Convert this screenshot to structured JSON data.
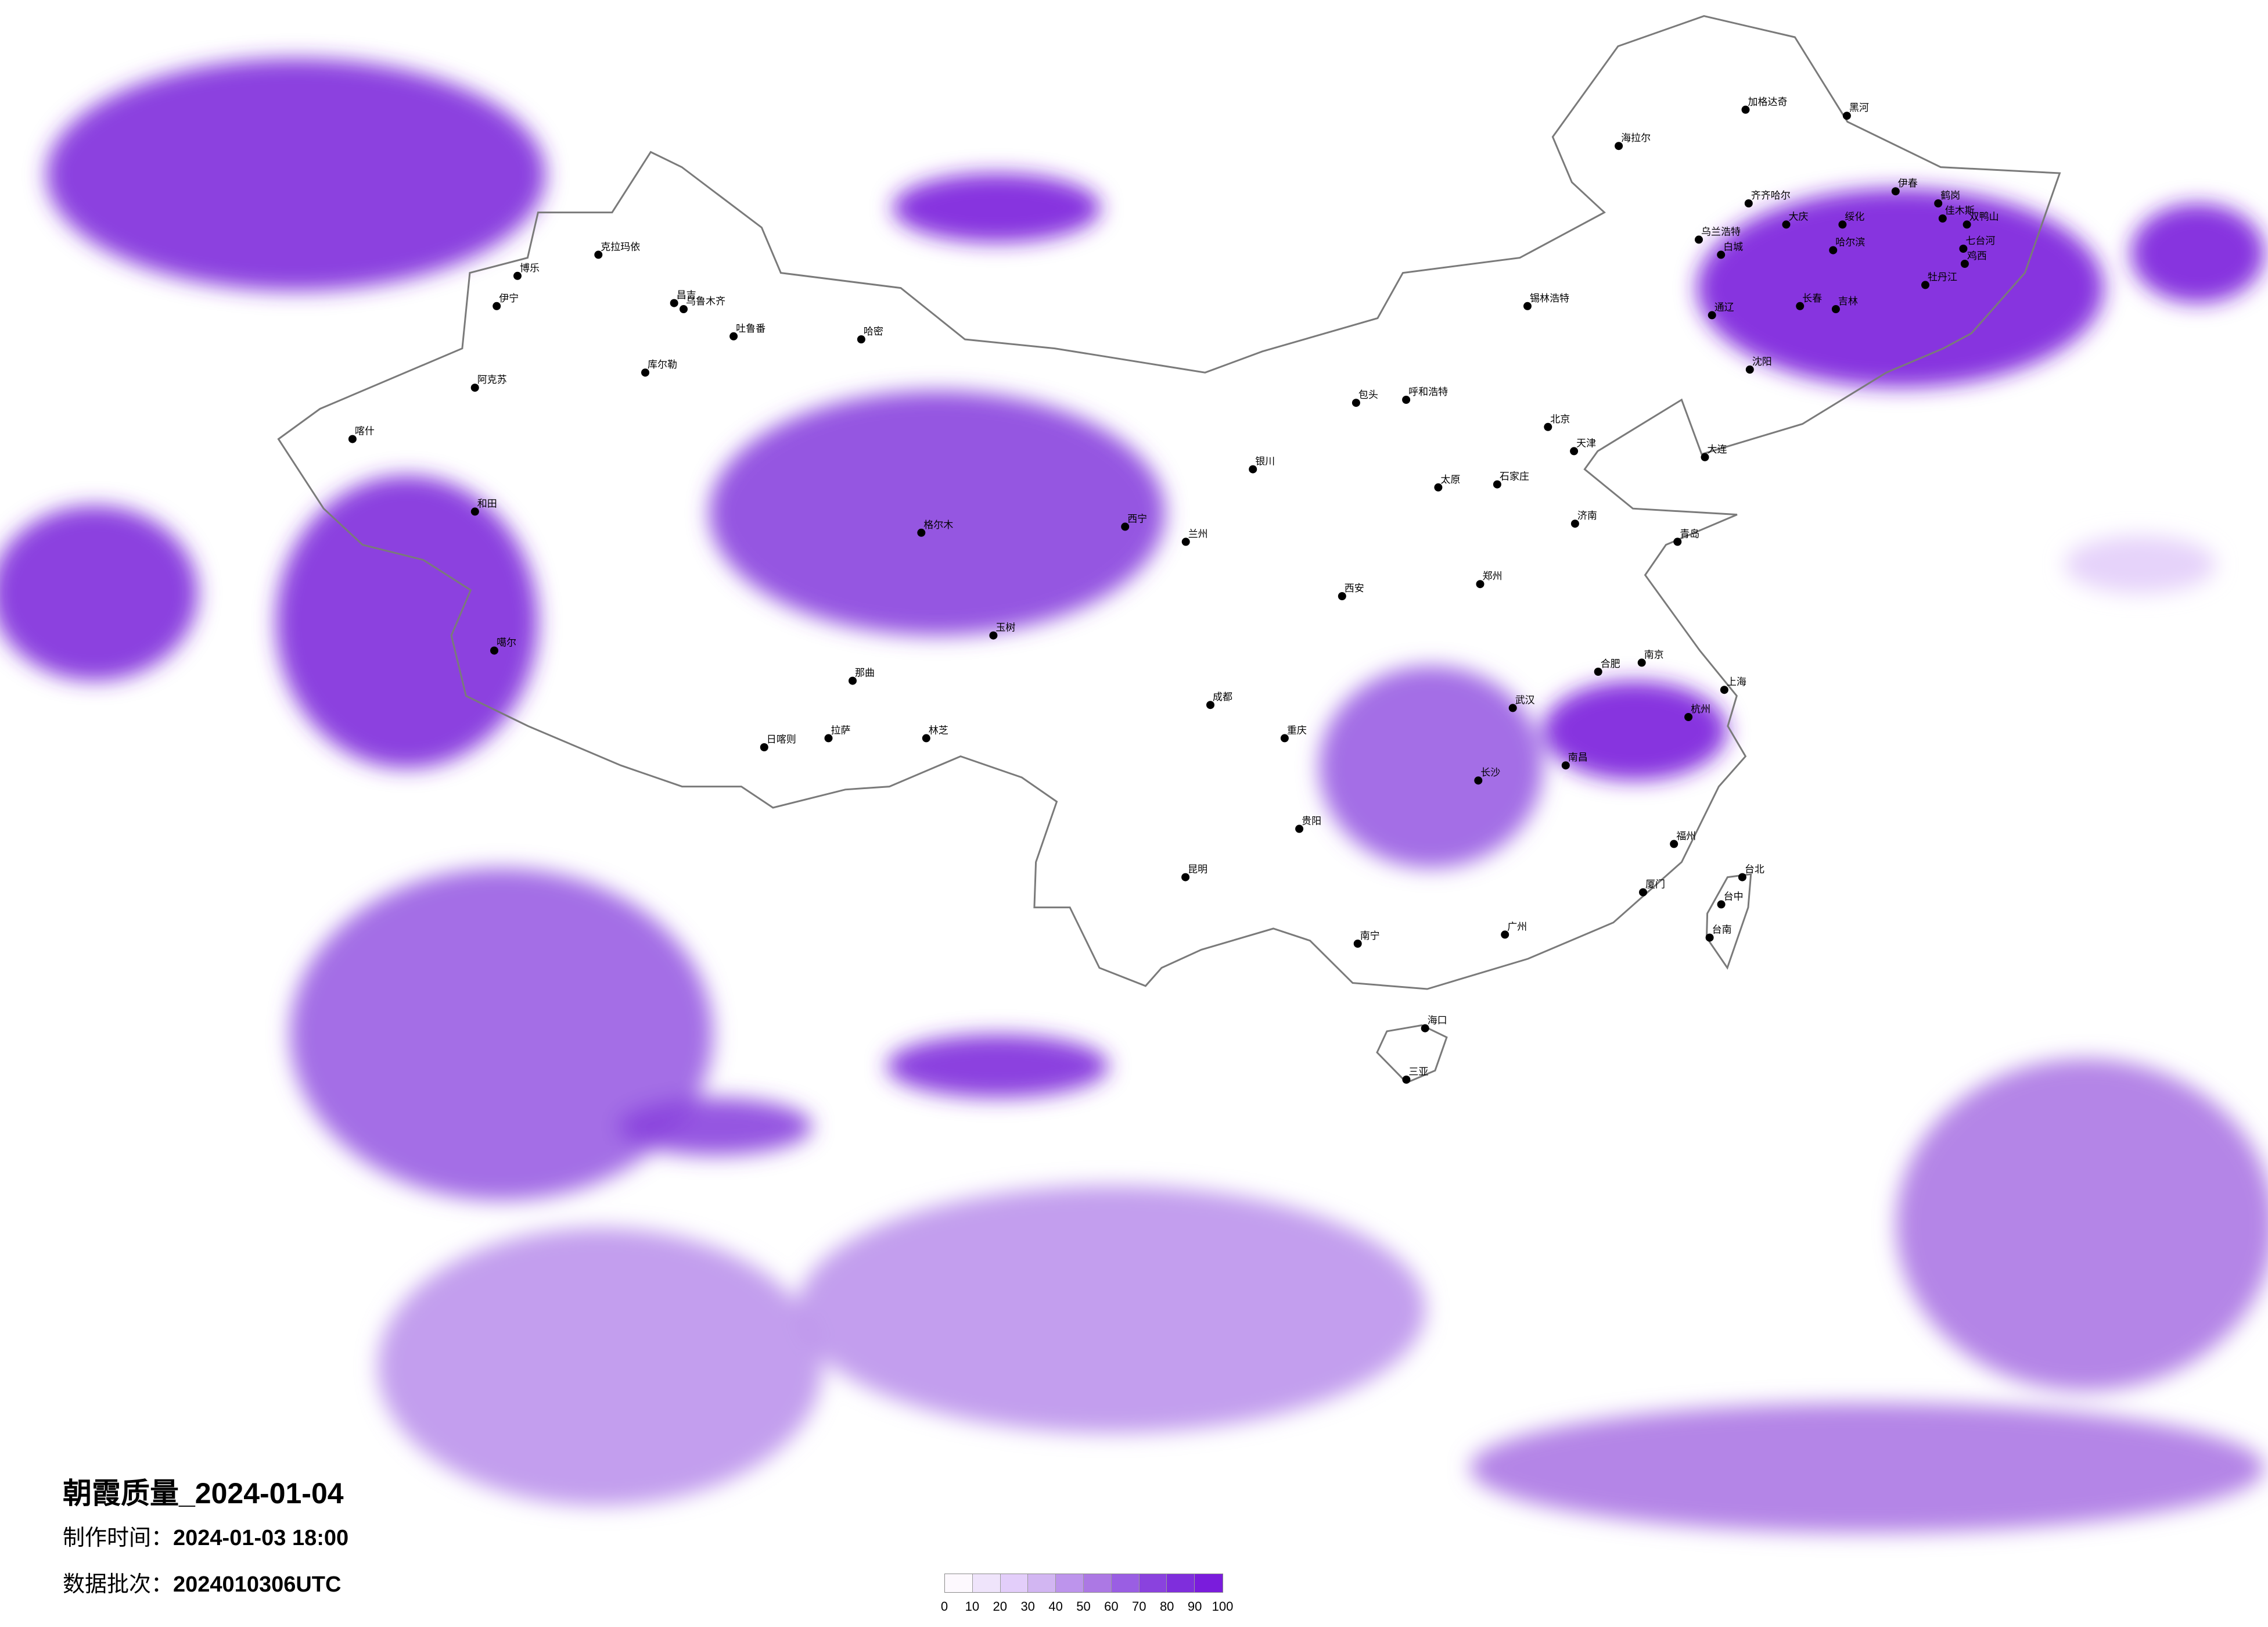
{
  "title": "朝霞质量_2024-01-04",
  "made_time": {
    "label": "制作时间：",
    "value": "2024-01-03 18:00"
  },
  "data_batch": {
    "label": "数据批次：",
    "value": "2024010306UTC"
  },
  "colors": {
    "border": "#7a7a7a",
    "city_dot": "#000000"
  },
  "chart_data": {
    "type": "heatmap",
    "legend": {
      "placement": "bottom-center",
      "ticks": [
        "0",
        "10",
        "20",
        "30",
        "40",
        "50",
        "60",
        "70",
        "80",
        "90",
        "100"
      ],
      "colors": [
        "#fdf9fe",
        "#efe4fb",
        "#e3cefa",
        "#d2b6f2",
        "#bd94ec",
        "#ac78e4",
        "#9a5ee3",
        "#8a42de",
        "#7f2edc",
        "#7a1cdc"
      ]
    },
    "patches": [
      {
        "lon": [
          66.9,
          83.0
        ],
        "lat": [
          44.4,
          52.1
        ],
        "value": 80
      },
      {
        "lon": [
          88.2,
          102.8
        ],
        "lat": [
          33.0,
          41.1
        ],
        "value": 75
      },
      {
        "lon": [
          73.3,
          81.2
        ],
        "lat": [
          28.6,
          38.3
        ],
        "value": 85
      },
      {
        "lon": [
          63.6,
          70.0
        ],
        "lat": [
          31.5,
          37.3
        ],
        "value": 85
      },
      {
        "lon": [
          122.2,
          135.3
        ],
        "lat": [
          41.2,
          47.8
        ],
        "value": 95
      },
      {
        "lon": [
          136.8,
          141.0
        ],
        "lat": [
          44.0,
          47.3
        ],
        "value": 90
      },
      {
        "lon": [
          115.4,
          121.3
        ],
        "lat": [
          28.2,
          31.5
        ],
        "value": 95
      },
      {
        "lon": [
          107.9,
          114.8
        ],
        "lat": [
          25.3,
          32.0
        ],
        "value": 65
      },
      {
        "lon": [
          92.1,
          99.4
        ],
        "lat": [
          17.7,
          19.8
        ],
        "value": 85
      },
      {
        "lon": [
          72.5,
          85.7
        ],
        "lat": [
          14.3,
          25.3
        ],
        "value": 60
      },
      {
        "lon": [
          82.8,
          89.2
        ],
        "lat": [
          15.8,
          17.7
        ],
        "value": 75
      },
      {
        "lon": [
          126.1,
          137.8
        ],
        "lat": [
          8.0,
          19.0
        ],
        "value": 50
      },
      {
        "lon": [
          110.6,
          137.0
        ],
        "lat": [
          3.3,
          7.6
        ],
        "value": 55
      },
      {
        "lon": [
          74.3,
          88.4
        ],
        "lat": [
          4.2,
          13.4
        ],
        "value": 40
      },
      {
        "lon": [
          88.6,
          109.0
        ],
        "lat": [
          6.6,
          14.8
        ],
        "value": 45
      },
      {
        "lon": [
          95.1,
          101.9
        ],
        "lat": [
          46.0,
          48.3
        ],
        "value": 90
      },
      {
        "lon": [
          133.5,
          138.4
        ],
        "lat": [
          34.4,
          36.3
        ],
        "value": 20
      }
    ]
  },
  "cities": [
    {
      "name": "克拉玛依",
      "lon": 84.9,
      "lat": 45.6
    },
    {
      "name": "博乐",
      "lon": 82.1,
      "lat": 44.9
    },
    {
      "name": "伊宁",
      "lon": 81.3,
      "lat": 43.9
    },
    {
      "name": "昌吉",
      "lon": 87.3,
      "lat": 44.0
    },
    {
      "name": "乌鲁木齐",
      "lon": 87.6,
      "lat": 43.8
    },
    {
      "name": "吐鲁番",
      "lon": 89.2,
      "lat": 42.9
    },
    {
      "name": "哈密",
      "lon": 93.5,
      "lat": 42.8
    },
    {
      "name": "库尔勒",
      "lon": 86.1,
      "lat": 41.7
    },
    {
      "name": "阿克苏",
      "lon": 80.3,
      "lat": 41.2
    },
    {
      "name": "喀什",
      "lon": 76.0,
      "lat": 39.5
    },
    {
      "name": "和田",
      "lon": 79.9,
      "lat": 37.1
    },
    {
      "name": "噶尔",
      "lon": 80.1,
      "lat": 32.5
    },
    {
      "name": "日喀则",
      "lon": 88.9,
      "lat": 29.3
    },
    {
      "name": "拉萨",
      "lon": 91.1,
      "lat": 29.6
    },
    {
      "name": "那曲",
      "lon": 92.1,
      "lat": 31.5
    },
    {
      "name": "林芝",
      "lon": 94.4,
      "lat": 29.6
    },
    {
      "name": "格尔木",
      "lon": 94.9,
      "lat": 36.4
    },
    {
      "name": "西宁",
      "lon": 101.8,
      "lat": 36.6
    },
    {
      "name": "玉树",
      "lon": 97.0,
      "lat": 33.0
    },
    {
      "name": "兰州",
      "lon": 103.8,
      "lat": 36.1
    },
    {
      "name": "银川",
      "lon": 106.3,
      "lat": 38.5
    },
    {
      "name": "呼和浩特",
      "lon": 111.7,
      "lat": 40.8
    },
    {
      "name": "包头",
      "lon": 110.0,
      "lat": 40.7
    },
    {
      "name": "海拉尔",
      "lon": 119.7,
      "lat": 49.2
    },
    {
      "name": "加格达奇",
      "lon": 124.1,
      "lat": 50.4
    },
    {
      "name": "黑河",
      "lon": 127.5,
      "lat": 50.2
    },
    {
      "name": "齐齐哈尔",
      "lon": 123.9,
      "lat": 47.3
    },
    {
      "name": "大庆",
      "lon": 125.1,
      "lat": 46.6
    },
    {
      "name": "绥化",
      "lon": 127.0,
      "lat": 46.6
    },
    {
      "name": "伊春",
      "lon": 128.9,
      "lat": 47.7
    },
    {
      "name": "鹤岗",
      "lon": 130.3,
      "lat": 47.3
    },
    {
      "name": "佳木斯",
      "lon": 130.4,
      "lat": 46.8
    },
    {
      "name": "双鸭山",
      "lon": 131.2,
      "lat": 46.6
    },
    {
      "name": "七台河",
      "lon": 131.0,
      "lat": 45.8
    },
    {
      "name": "鸡西",
      "lon": 131.0,
      "lat": 45.3
    },
    {
      "name": "牡丹江",
      "lon": 129.6,
      "lat": 44.6
    },
    {
      "name": "哈尔滨",
      "lon": 126.6,
      "lat": 45.75
    },
    {
      "name": "乌兰浩特",
      "lon": 122.1,
      "lat": 46.1
    },
    {
      "name": "白城",
      "lon": 122.8,
      "lat": 45.6
    },
    {
      "name": "长春",
      "lon": 125.3,
      "lat": 43.9
    },
    {
      "name": "吉林",
      "lon": 126.5,
      "lat": 43.8
    },
    {
      "name": "通辽",
      "lon": 122.3,
      "lat": 43.6
    },
    {
      "name": "沈阳",
      "lon": 123.4,
      "lat": 41.8
    },
    {
      "name": "大连",
      "lon": 121.6,
      "lat": 38.9
    },
    {
      "name": "锡林浩特",
      "lon": 116.1,
      "lat": 43.9
    },
    {
      "name": "北京",
      "lon": 116.4,
      "lat": 39.9
    },
    {
      "name": "天津",
      "lon": 117.2,
      "lat": 39.1
    },
    {
      "name": "石家庄",
      "lon": 114.5,
      "lat": 38.0
    },
    {
      "name": "太原",
      "lon": 112.5,
      "lat": 37.9
    },
    {
      "name": "济南",
      "lon": 117.0,
      "lat": 36.7
    },
    {
      "name": "青岛",
      "lon": 120.4,
      "lat": 36.1
    },
    {
      "name": "郑州",
      "lon": 113.6,
      "lat": 34.7
    },
    {
      "name": "西安",
      "lon": 108.9,
      "lat": 34.3
    },
    {
      "name": "成都",
      "lon": 104.1,
      "lat": 30.7
    },
    {
      "name": "重庆",
      "lon": 106.5,
      "lat": 29.6
    },
    {
      "name": "武汉",
      "lon": 114.3,
      "lat": 30.6
    },
    {
      "name": "南京",
      "lon": 118.8,
      "lat": 32.1
    },
    {
      "name": "上海",
      "lon": 121.5,
      "lat": 31.2
    },
    {
      "name": "杭州",
      "lon": 120.2,
      "lat": 30.3
    },
    {
      "name": "合肥",
      "lon": 117.3,
      "lat": 31.8
    },
    {
      "name": "南昌",
      "lon": 115.9,
      "lat": 28.7
    },
    {
      "name": "长沙",
      "lon": 112.9,
      "lat": 28.2
    },
    {
      "name": "贵阳",
      "lon": 106.7,
      "lat": 26.6
    },
    {
      "name": "昆明",
      "lon": 102.7,
      "lat": 25.0
    },
    {
      "name": "南宁",
      "lon": 108.3,
      "lat": 22.8
    },
    {
      "name": "广州",
      "lon": 113.3,
      "lat": 23.1
    },
    {
      "name": "福州",
      "lon": 119.3,
      "lat": 26.1
    },
    {
      "name": "厦门",
      "lon": 118.1,
      "lat": 24.5
    },
    {
      "name": "台北",
      "lon": 121.5,
      "lat": 25.0
    },
    {
      "name": "台中",
      "lon": 120.7,
      "lat": 24.1
    },
    {
      "name": "台南",
      "lon": 120.2,
      "lat": 23.0
    },
    {
      "name": "海口",
      "lon": 110.3,
      "lat": 20.0
    },
    {
      "name": "三亚",
      "lon": 109.5,
      "lat": 18.3
    }
  ]
}
